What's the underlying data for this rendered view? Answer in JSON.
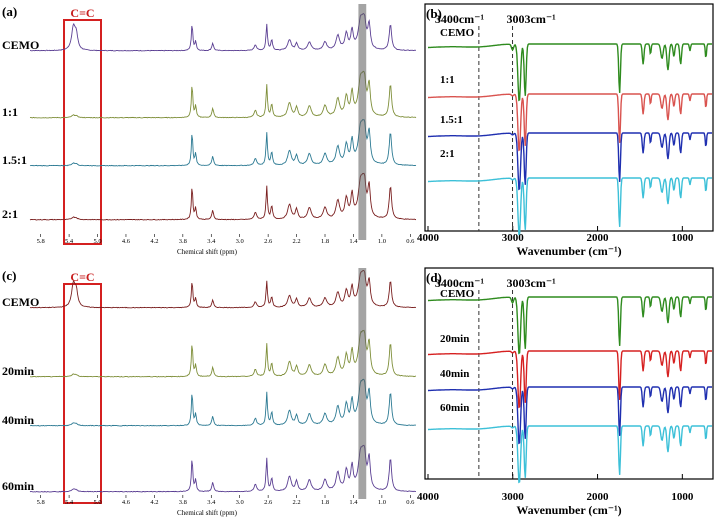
{
  "figure": {
    "panels": [
      {
        "id": "a",
        "label": "(a)",
        "kind": "nmr",
        "marker_label": "C=C",
        "x_ticks": [
          "5.8",
          "5.4",
          "5.0",
          "4.6",
          "4.2",
          "3.8",
          "3.4",
          "3.0",
          "2.6",
          "2.2",
          "1.8",
          "1.4",
          "1.0",
          "0.6"
        ],
        "xlabel": "Chemical shift (ppm)",
        "traces": [
          {
            "label": "CEMO",
            "color": "#5b3f93"
          },
          {
            "label": "1:1",
            "color": "#7f8f3a"
          },
          {
            "label": "1.5:1",
            "color": "#2c7a93"
          },
          {
            "label": "2:1",
            "color": "#7a1f1f"
          }
        ]
      },
      {
        "id": "b",
        "label": "(b)",
        "kind": "ftir",
        "annotations": [
          "3400cm⁻¹",
          "3003cm⁻¹"
        ],
        "x_ticks": [
          "4000",
          "3000",
          "2000",
          "1000"
        ],
        "xlabel": "Wavenumber (cm⁻¹)",
        "traces": [
          {
            "label": "CEMO",
            "color": "#2e8b1e"
          },
          {
            "label": "1:1",
            "color": "#d9534f"
          },
          {
            "label": "1.5:1",
            "color": "#1f2fb0"
          },
          {
            "label": "2:1",
            "color": "#3cc0d8"
          }
        ]
      },
      {
        "id": "c",
        "label": "(c)",
        "kind": "nmr",
        "marker_label": "C=C",
        "x_ticks": [
          "5.8",
          "5.4",
          "5.0",
          "4.6",
          "4.2",
          "3.8",
          "3.4",
          "3.0",
          "2.6",
          "2.2",
          "1.8",
          "1.4",
          "1.0",
          "0.6"
        ],
        "xlabel": "Chemical shift (ppm)",
        "traces": [
          {
            "label": "CEMO",
            "color": "#7a1f1f"
          },
          {
            "label": "20min",
            "color": "#7f8f3a"
          },
          {
            "label": "40min",
            "color": "#2c7a93"
          },
          {
            "label": "60min",
            "color": "#5b3f93"
          }
        ]
      },
      {
        "id": "d",
        "label": "(d)",
        "kind": "ftir",
        "annotations": [
          "3400cm⁻¹",
          "3003cm⁻¹"
        ],
        "x_ticks": [
          "4000",
          "3000",
          "2000",
          "1000"
        ],
        "xlabel": "Wavenumber (cm⁻¹)",
        "traces": [
          {
            "label": "CEMO",
            "color": "#2e8b1e"
          },
          {
            "label": "20min",
            "color": "#d62020"
          },
          {
            "label": "40min",
            "color": "#1f2fb0"
          },
          {
            "label": "60min",
            "color": "#3cc0d8"
          }
        ]
      }
    ]
  },
  "chart_data": [
    {
      "type": "line",
      "panel": "a",
      "xlabel": "Chemical shift (ppm)",
      "ylabel": "",
      "xlim": [
        5.8,
        0.6
      ],
      "series": [
        {
          "name": "CEMO"
        },
        {
          "name": "1:1"
        },
        {
          "name": "1.5:1"
        },
        {
          "name": "2:1"
        }
      ],
      "annotations": [
        "C=C"
      ]
    },
    {
      "type": "line",
      "panel": "b",
      "xlabel": "Wavenumber (cm⁻¹)",
      "ylabel": "",
      "xlim": [
        4000,
        650
      ],
      "series": [
        {
          "name": "CEMO"
        },
        {
          "name": "1:1"
        },
        {
          "name": "1.5:1"
        },
        {
          "name": "2:1"
        }
      ],
      "annotations": [
        "3400cm⁻¹",
        "3003cm⁻¹"
      ],
      "reference_lines_x": [
        3400,
        3003
      ]
    },
    {
      "type": "line",
      "panel": "c",
      "xlabel": "Chemical shift (ppm)",
      "ylabel": "",
      "xlim": [
        5.8,
        0.6
      ],
      "series": [
        {
          "name": "CEMO"
        },
        {
          "name": "20min"
        },
        {
          "name": "40min"
        },
        {
          "name": "60min"
        }
      ],
      "annotations": [
        "C=C"
      ]
    },
    {
      "type": "line",
      "panel": "d",
      "xlabel": "Wavenumber (cm⁻¹)",
      "ylabel": "",
      "xlim": [
        4000,
        650
      ],
      "series": [
        {
          "name": "CEMO"
        },
        {
          "name": "20min"
        },
        {
          "name": "40min"
        },
        {
          "name": "60min"
        }
      ],
      "annotations": [
        "3400cm⁻¹",
        "3003cm⁻¹"
      ],
      "reference_lines_x": [
        3400,
        3003
      ]
    }
  ]
}
